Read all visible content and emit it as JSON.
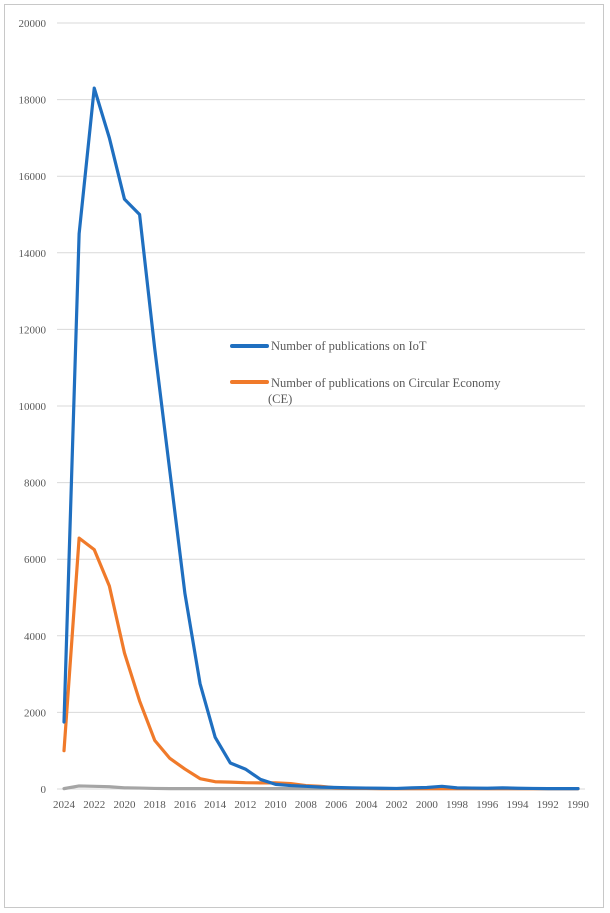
{
  "chart_data": {
    "type": "line",
    "title": "",
    "xlabel": "",
    "ylabel": "",
    "ylim": [
      0,
      20000
    ],
    "grid": true,
    "legend_position": "center-right",
    "x": [
      2024,
      2023,
      2022,
      2021,
      2020,
      2019,
      2018,
      2017,
      2016,
      2015,
      2014,
      2013,
      2012,
      2011,
      2010,
      2009,
      2008,
      2007,
      2006,
      2005,
      2004,
      2003,
      2002,
      2001,
      2000,
      1999,
      1998,
      1997,
      1996,
      1995,
      1994,
      1993,
      1992,
      1991,
      1990
    ],
    "x_tick_labels": [
      "2024",
      "2022",
      "2020",
      "2018",
      "2016",
      "2014",
      "2012",
      "2010",
      "2008",
      "2006",
      "2004",
      "2002",
      "2000",
      "1998",
      "1996",
      "1994",
      "1992",
      "1990"
    ],
    "y_tick_labels": [
      "0",
      "2000",
      "4000",
      "6000",
      "8000",
      "10000",
      "12000",
      "14000",
      "16000",
      "18000",
      "20000"
    ],
    "series": [
      {
        "name": "Number of publications on IoT",
        "color": "#1f6fc0",
        "values": [
          1750,
          14500,
          18300,
          17000,
          15400,
          15000,
          11500,
          8300,
          5100,
          2750,
          1350,
          680,
          520,
          250,
          120,
          90,
          70,
          50,
          40,
          30,
          25,
          20,
          15,
          30,
          40,
          70,
          30,
          25,
          20,
          30,
          20,
          15,
          10,
          10,
          10
        ]
      },
      {
        "name": "Number of publications on Circular Economy (CE)",
        "color": "#f07a2a",
        "values": [
          1000,
          6550,
          6250,
          5300,
          3550,
          2300,
          1270,
          800,
          520,
          270,
          190,
          180,
          165,
          160,
          160,
          140,
          90,
          70,
          30,
          20,
          15,
          10,
          10,
          10,
          10,
          10,
          10,
          10,
          10,
          10,
          10,
          10,
          10,
          10,
          10
        ]
      },
      {
        "name": "",
        "color": "#a5a5a5",
        "values": [
          10,
          80,
          70,
          60,
          30,
          25,
          15,
          10,
          10,
          10,
          10,
          10,
          10,
          10,
          10,
          10,
          10,
          10,
          10,
          10,
          10,
          10,
          10,
          10,
          10,
          10,
          10,
          10,
          10,
          10,
          10,
          10,
          10,
          10,
          10
        ]
      }
    ]
  }
}
